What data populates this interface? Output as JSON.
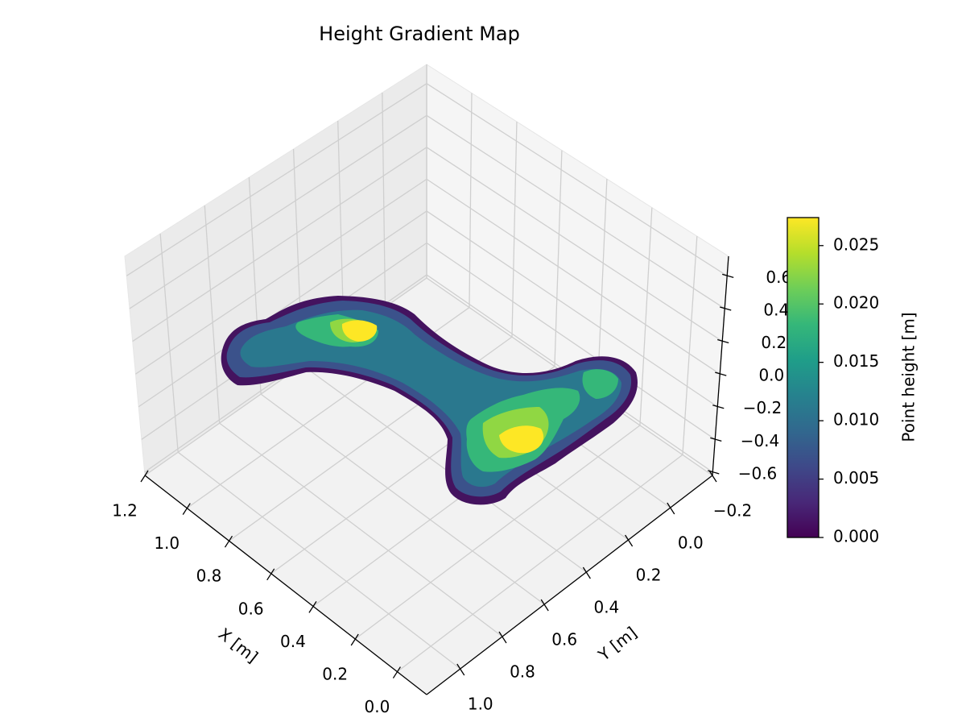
{
  "chart_data": {
    "type": "scatter3d",
    "title": "Height Gradient Map",
    "xlabel": "X [m]",
    "ylabel": "Y [m]",
    "xlim": [
      -0.14,
      1.2
    ],
    "ylim": [
      -0.2,
      1.16
    ],
    "zlim": [
      -0.62,
      0.72
    ],
    "xticks": [
      {
        "value": 0,
        "label": "0.0"
      },
      0.2,
      0.4,
      0.6,
      0.8,
      {
        "value": 1,
        "label": "1.0"
      },
      1.2
    ],
    "yticks": [
      {
        "value": -0.2,
        "label": "−0.2"
      },
      {
        "value": 0,
        "label": "0.0"
      },
      0.2,
      0.4,
      0.6,
      0.8,
      {
        "value": 1,
        "label": "1.0"
      }
    ],
    "zticks": [
      {
        "value": -0.6,
        "label": "−0.6"
      },
      {
        "value": -0.4,
        "label": "−0.4"
      },
      {
        "value": -0.2,
        "label": "−0.2"
      },
      {
        "value": 0,
        "label": "0.0"
      },
      0.2,
      0.4,
      0.6
    ],
    "grid": true,
    "colormap": "viridis",
    "colorbar": {
      "label": "Point height [m]",
      "lim": [
        0,
        0.0274
      ],
      "ticks": [
        {
          "value": 0,
          "label": "0.000"
        },
        {
          "value": 0.005,
          "label": "0.005"
        },
        {
          "value": 0.01,
          "label": "0.010"
        },
        {
          "value": 0.015,
          "label": "0.015"
        },
        {
          "value": 0.02,
          "label": "0.020"
        },
        {
          "value": 0.025,
          "label": "0.025"
        }
      ]
    }
  }
}
